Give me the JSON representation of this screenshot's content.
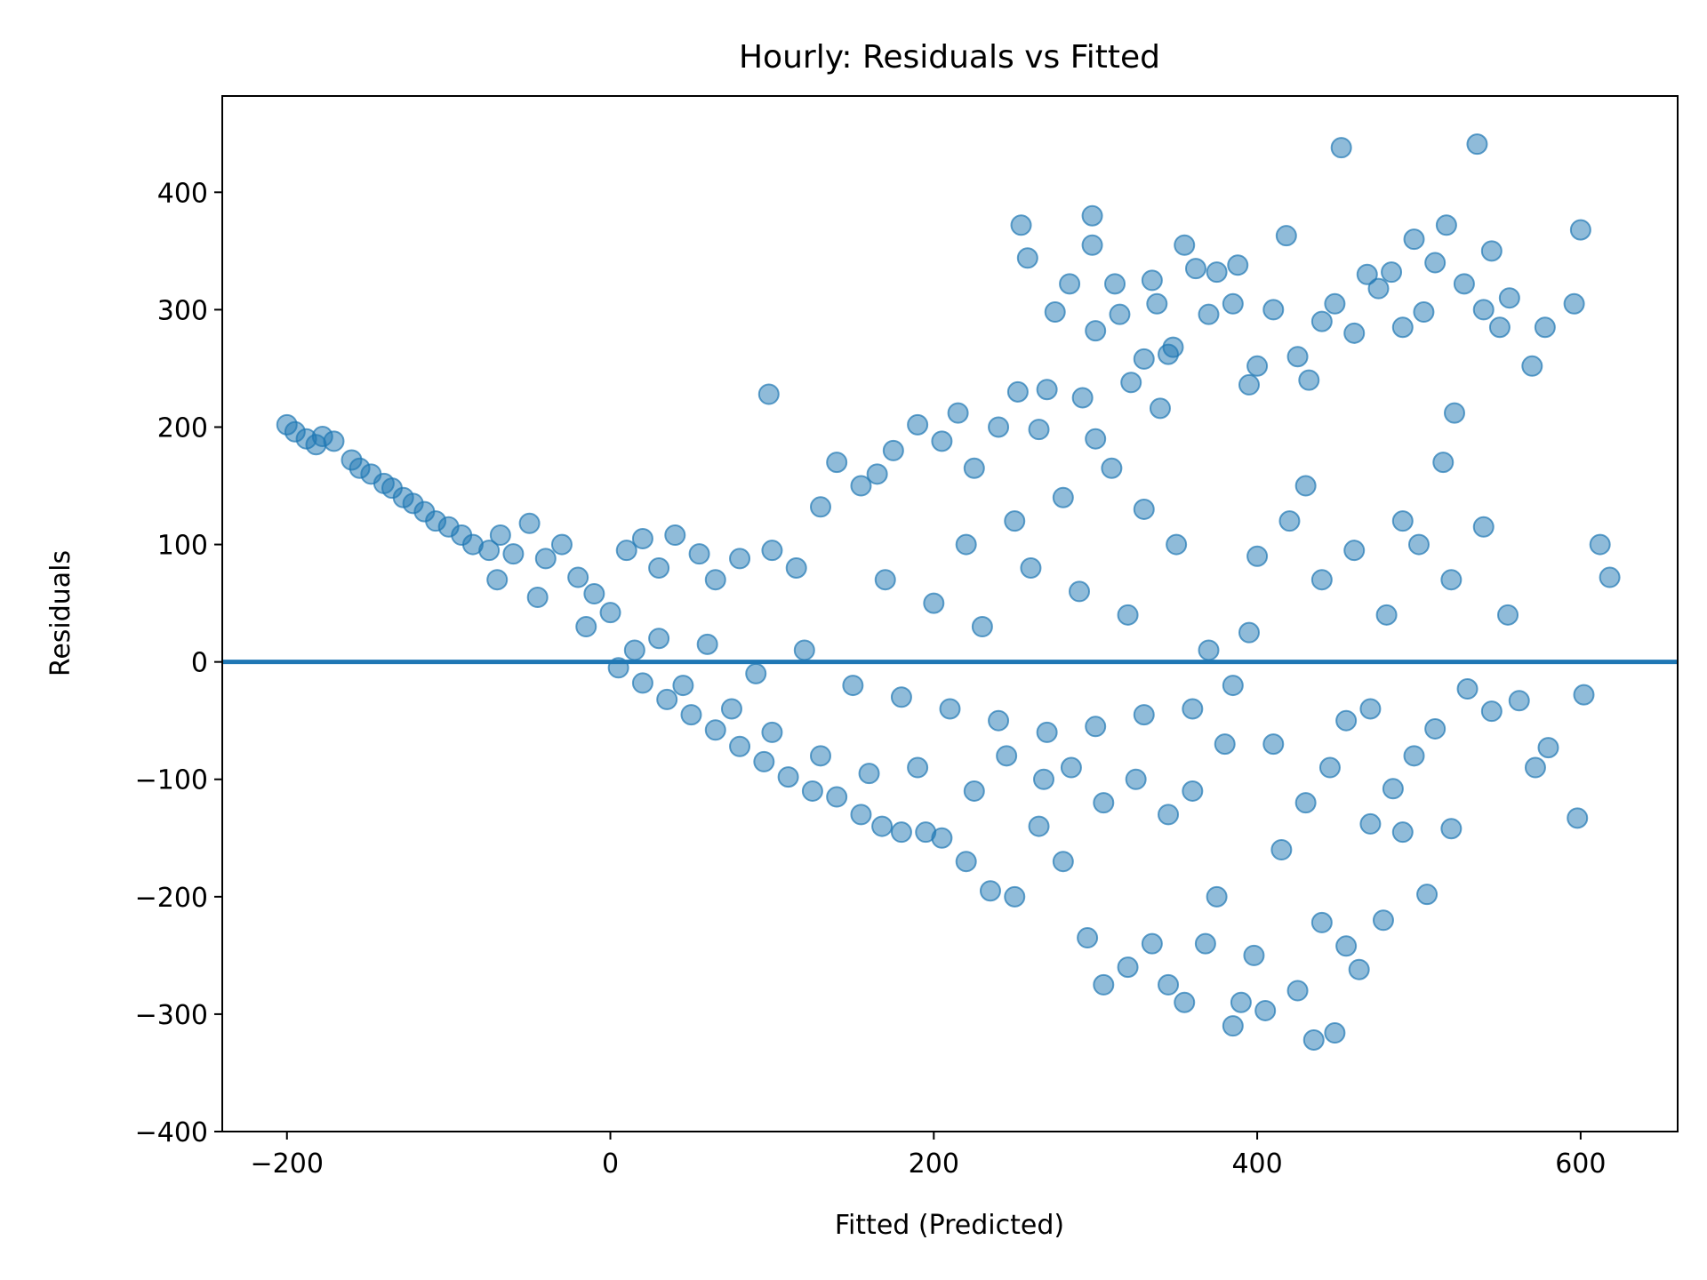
{
  "chart_data": {
    "type": "scatter",
    "title": "Hourly: Residuals vs Fitted",
    "xlabel": "Fitted (Predicted)",
    "ylabel": "Residuals",
    "xlim": [
      -240,
      660
    ],
    "ylim": [
      -400,
      482
    ],
    "xticks": [
      -200,
      0,
      200,
      400,
      600
    ],
    "xtick_labels": [
      "−200",
      "0",
      "200",
      "400",
      "600"
    ],
    "yticks": [
      -400,
      -300,
      -200,
      -100,
      0,
      100,
      200,
      300,
      400
    ],
    "ytick_labels": [
      "−400",
      "−300",
      "−200",
      "−100",
      "0",
      "100",
      "200",
      "300",
      "400"
    ],
    "grid": false,
    "reference_line": {
      "y": 0,
      "color": "#1f77b4"
    },
    "series": [
      {
        "color": "#1f77b4",
        "alpha": 0.5,
        "points": [
          [
            -200,
            202
          ],
          [
            -195,
            196
          ],
          [
            -188,
            190
          ],
          [
            -182,
            185
          ],
          [
            -178,
            192
          ],
          [
            -171,
            188
          ],
          [
            -160,
            172
          ],
          [
            -155,
            165
          ],
          [
            -148,
            160
          ],
          [
            -140,
            152
          ],
          [
            -135,
            148
          ],
          [
            -128,
            140
          ],
          [
            -122,
            135
          ],
          [
            -115,
            128
          ],
          [
            -108,
            120
          ],
          [
            -100,
            115
          ],
          [
            -92,
            108
          ],
          [
            -85,
            100
          ],
          [
            -75,
            95
          ],
          [
            -68,
            108
          ],
          [
            -60,
            92
          ],
          [
            -50,
            118
          ],
          [
            -40,
            88
          ],
          [
            -30,
            100
          ],
          [
            -20,
            72
          ],
          [
            -10,
            58
          ],
          [
            0,
            42
          ],
          [
            10,
            95
          ],
          [
            20,
            105
          ],
          [
            30,
            80
          ],
          [
            40,
            108
          ],
          [
            55,
            92
          ],
          [
            65,
            70
          ],
          [
            80,
            88
          ],
          [
            98,
            228
          ],
          [
            100,
            95
          ],
          [
            115,
            80
          ],
          [
            130,
            132
          ],
          [
            140,
            170
          ],
          [
            155,
            150
          ],
          [
            165,
            160
          ],
          [
            175,
            180
          ],
          [
            190,
            202
          ],
          [
            205,
            188
          ],
          [
            215,
            212
          ],
          [
            225,
            165
          ],
          [
            240,
            200
          ],
          [
            252,
            230
          ],
          [
            254,
            372
          ],
          [
            258,
            344
          ],
          [
            265,
            198
          ],
          [
            270,
            232
          ],
          [
            275,
            298
          ],
          [
            284,
            322
          ],
          [
            292,
            225
          ],
          [
            298,
            380
          ],
          [
            298,
            355
          ],
          [
            300,
            282
          ],
          [
            312,
            322
          ],
          [
            315,
            296
          ],
          [
            322,
            238
          ],
          [
            330,
            258
          ],
          [
            335,
            325
          ],
          [
            338,
            305
          ],
          [
            340,
            216
          ],
          [
            345,
            262
          ],
          [
            348,
            268
          ],
          [
            355,
            355
          ],
          [
            362,
            335
          ],
          [
            370,
            296
          ],
          [
            375,
            332
          ],
          [
            385,
            305
          ],
          [
            388,
            338
          ],
          [
            395,
            236
          ],
          [
            400,
            252
          ],
          [
            410,
            300
          ],
          [
            418,
            363
          ],
          [
            425,
            260
          ],
          [
            432,
            240
          ],
          [
            440,
            290
          ],
          [
            448,
            305
          ],
          [
            452,
            438
          ],
          [
            460,
            280
          ],
          [
            468,
            330
          ],
          [
            475,
            318
          ],
          [
            483,
            332
          ],
          [
            490,
            285
          ],
          [
            497,
            360
          ],
          [
            503,
            298
          ],
          [
            510,
            340
          ],
          [
            517,
            372
          ],
          [
            522,
            212
          ],
          [
            528,
            322
          ],
          [
            536,
            441
          ],
          [
            540,
            300
          ],
          [
            545,
            350
          ],
          [
            550,
            285
          ],
          [
            556,
            310
          ],
          [
            570,
            252
          ],
          [
            578,
            285
          ],
          [
            596,
            305
          ],
          [
            600,
            368
          ],
          [
            612,
            100
          ],
          [
            618,
            72
          ],
          [
            602,
            -28
          ],
          [
            598,
            -133
          ],
          [
            580,
            -73
          ],
          [
            572,
            -90
          ],
          [
            562,
            -33
          ],
          [
            545,
            -42
          ],
          [
            530,
            -23
          ],
          [
            520,
            -142
          ],
          [
            510,
            -57
          ],
          [
            505,
            -198
          ],
          [
            497,
            -80
          ],
          [
            490,
            -145
          ],
          [
            484,
            -108
          ],
          [
            478,
            -220
          ],
          [
            470,
            -138
          ],
          [
            463,
            -262
          ],
          [
            455,
            -242
          ],
          [
            448,
            -316
          ],
          [
            440,
            -222
          ],
          [
            435,
            -322
          ],
          [
            425,
            -280
          ],
          [
            415,
            -160
          ],
          [
            405,
            -297
          ],
          [
            398,
            -250
          ],
          [
            390,
            -290
          ],
          [
            385,
            -310
          ],
          [
            375,
            -200
          ],
          [
            368,
            -240
          ],
          [
            355,
            -290
          ],
          [
            345,
            -275
          ],
          [
            335,
            -240
          ],
          [
            320,
            -260
          ],
          [
            305,
            -275
          ],
          [
            295,
            -235
          ],
          [
            280,
            -170
          ],
          [
            265,
            -140
          ],
          [
            250,
            -200
          ],
          [
            235,
            -195
          ],
          [
            220,
            -170
          ],
          [
            205,
            -150
          ],
          [
            195,
            -145
          ],
          [
            180,
            -145
          ],
          [
            168,
            -140
          ],
          [
            155,
            -130
          ],
          [
            140,
            -115
          ],
          [
            125,
            -110
          ],
          [
            110,
            -98
          ],
          [
            95,
            -85
          ],
          [
            80,
            -72
          ],
          [
            65,
            -58
          ],
          [
            50,
            -45
          ],
          [
            35,
            -32
          ],
          [
            20,
            -18
          ],
          [
            5,
            -5
          ],
          [
            30,
            20
          ],
          [
            60,
            15
          ],
          [
            90,
            -10
          ],
          [
            120,
            10
          ],
          [
            150,
            -20
          ],
          [
            180,
            -30
          ],
          [
            210,
            -40
          ],
          [
            240,
            -50
          ],
          [
            270,
            -60
          ],
          [
            300,
            -55
          ],
          [
            330,
            -45
          ],
          [
            360,
            -40
          ],
          [
            380,
            -70
          ],
          [
            320,
            40
          ],
          [
            290,
            60
          ],
          [
            260,
            80
          ],
          [
            230,
            30
          ],
          [
            200,
            50
          ],
          [
            170,
            70
          ],
          [
            350,
            100
          ],
          [
            330,
            130
          ],
          [
            310,
            165
          ],
          [
            300,
            190
          ],
          [
            280,
            140
          ],
          [
            250,
            120
          ],
          [
            220,
            100
          ],
          [
            440,
            70
          ],
          [
            460,
            95
          ],
          [
            420,
            120
          ],
          [
            400,
            90
          ],
          [
            430,
            150
          ],
          [
            470,
            -40
          ],
          [
            480,
            40
          ],
          [
            500,
            100
          ],
          [
            520,
            70
          ],
          [
            540,
            115
          ],
          [
            555,
            40
          ],
          [
            490,
            120
          ],
          [
            515,
            170
          ],
          [
            455,
            -50
          ],
          [
            445,
            -90
          ],
          [
            430,
            -120
          ],
          [
            410,
            -70
          ],
          [
            395,
            25
          ],
          [
            385,
            -20
          ],
          [
            370,
            10
          ],
          [
            360,
            -110
          ],
          [
            345,
            -130
          ],
          [
            325,
            -100
          ],
          [
            305,
            -120
          ],
          [
            285,
            -90
          ],
          [
            268,
            -100
          ],
          [
            245,
            -80
          ],
          [
            225,
            -110
          ],
          [
            190,
            -90
          ],
          [
            160,
            -95
          ],
          [
            130,
            -80
          ],
          [
            100,
            -60
          ],
          [
            75,
            -40
          ],
          [
            45,
            -20
          ],
          [
            15,
            10
          ],
          [
            -15,
            30
          ],
          [
            -45,
            55
          ],
          [
            -70,
            70
          ]
        ]
      }
    ]
  }
}
